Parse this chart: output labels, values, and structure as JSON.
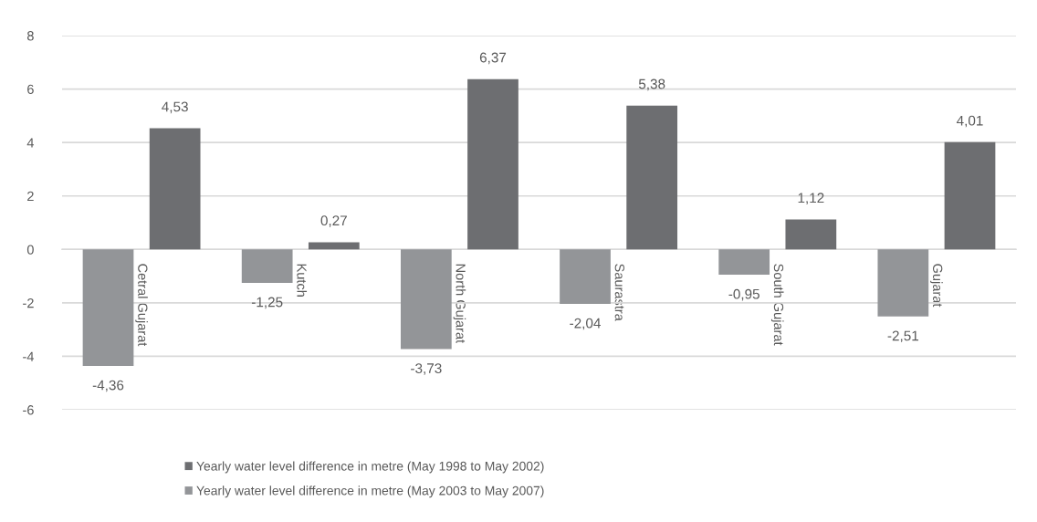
{
  "chart_data": {
    "type": "bar",
    "categories": [
      "Cetral Gujarat",
      "Kutch",
      "North Gujarat",
      "Saurastra",
      "South Gujarat",
      "Gujarat"
    ],
    "series": [
      {
        "name": "Yearly water level difference in metre (May 1998 to May 2002)",
        "color": "#6d6e71",
        "values": [
          4.53,
          0.27,
          6.37,
          5.38,
          1.12,
          4.01
        ],
        "value_labels": [
          "4,53",
          "0,27",
          "6,37",
          "5,38",
          "1,12",
          "4,01"
        ]
      },
      {
        "name": "Yearly water level difference in metre (May 2003 to May 2007)",
        "color": "#939598",
        "values": [
          -4.36,
          -1.25,
          -3.73,
          -2.04,
          -0.95,
          -2.51
        ],
        "value_labels": [
          "-4,36",
          "-1,25",
          "-3,73",
          "-2,04",
          "-0,95",
          "-2,51"
        ]
      }
    ],
    "ylim": [
      -6,
      8
    ],
    "yticks": [
      -6,
      -4,
      -2,
      0,
      2,
      4,
      6,
      8
    ],
    "grid": "y",
    "legend": "bottom"
  }
}
